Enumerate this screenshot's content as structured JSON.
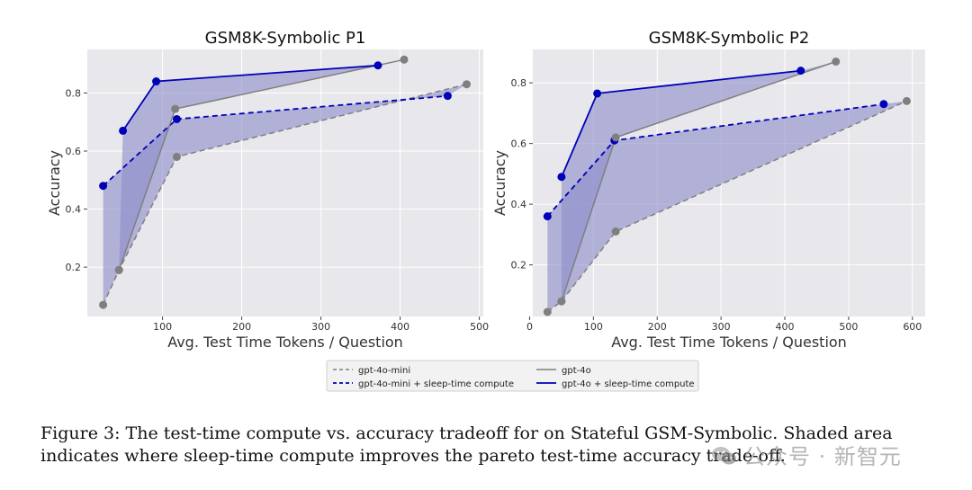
{
  "chart_data": [
    {
      "type": "line",
      "title": "GSM8K-Symbolic P1",
      "xlabel": "Avg. Test Time Tokens / Question",
      "ylabel": "Accuracy",
      "xlim": [
        5,
        505
      ],
      "ylim": [
        0.03,
        0.95
      ],
      "xticks": [
        100,
        200,
        300,
        400,
        500
      ],
      "yticks": [
        0.2,
        0.4,
        0.6,
        0.8
      ],
      "grid": true,
      "series": [
        {
          "key": "mini",
          "name": "gpt-4o-mini",
          "x": [
            25,
            45,
            118,
            484
          ],
          "y": [
            0.07,
            0.19,
            0.58,
            0.83
          ]
        },
        {
          "key": "mini_sleep",
          "name": "gpt-4o-mini + sleep-time compute",
          "x": [
            25,
            118,
            460
          ],
          "y": [
            0.48,
            0.71,
            0.79
          ]
        },
        {
          "key": "gpt4o",
          "name": "gpt-4o",
          "x": [
            45,
            116,
            405
          ],
          "y": [
            0.19,
            0.745,
            0.915
          ]
        },
        {
          "key": "gpt4o_sleep",
          "name": "gpt-4o + sleep-time compute",
          "x": [
            50,
            92,
            372
          ],
          "y": [
            0.67,
            0.84,
            0.895
          ]
        }
      ]
    },
    {
      "type": "line",
      "title": "GSM8K-Symbolic P2",
      "xlabel": "Avg. Test Time Tokens / Question",
      "ylabel": "Accuracy",
      "xlim": [
        5,
        620
      ],
      "ylim": [
        0.03,
        0.91
      ],
      "xticks": [
        0,
        100,
        200,
        300,
        400,
        500,
        600
      ],
      "yticks": [
        0.2,
        0.4,
        0.6,
        0.8
      ],
      "grid": true,
      "series": [
        {
          "key": "mini",
          "name": "gpt-4o-mini",
          "x": [
            28,
            50,
            135,
            591
          ],
          "y": [
            0.045,
            0.08,
            0.31,
            0.74
          ]
        },
        {
          "key": "mini_sleep",
          "name": "gpt-4o-mini + sleep-time compute",
          "x": [
            28,
            133,
            555
          ],
          "y": [
            0.36,
            0.61,
            0.73
          ]
        },
        {
          "key": "gpt4o",
          "name": "gpt-4o",
          "x": [
            50,
            135,
            480
          ],
          "y": [
            0.08,
            0.62,
            0.87
          ]
        },
        {
          "key": "gpt4o_sleep",
          "name": "gpt-4o + sleep-time compute",
          "x": [
            50,
            106,
            425
          ],
          "y": [
            0.49,
            0.765,
            0.84
          ]
        }
      ]
    }
  ],
  "legend": [
    {
      "key": "mini",
      "label": "gpt-4o-mini"
    },
    {
      "key": "gpt4o",
      "label": "gpt-4o"
    },
    {
      "key": "mini_sleep",
      "label": "gpt-4o-mini + sleep-time compute"
    },
    {
      "key": "gpt4o_sleep",
      "label": "gpt-4o + sleep-time compute"
    }
  ],
  "colors": {
    "gray": "#7f7f7f",
    "blue": "#0000b8",
    "fill": "#8c8ccc",
    "panel": "#e8e8ec",
    "grid": "#ffffff"
  },
  "caption": "Figure 3: The test-time compute vs. accuracy tradeoff for on Stateful GSM-Symbolic. Shaded area indicates where sleep-time compute improves the pareto test-time accuracy trade-off.",
  "watermark": "公众号 · 新智元"
}
